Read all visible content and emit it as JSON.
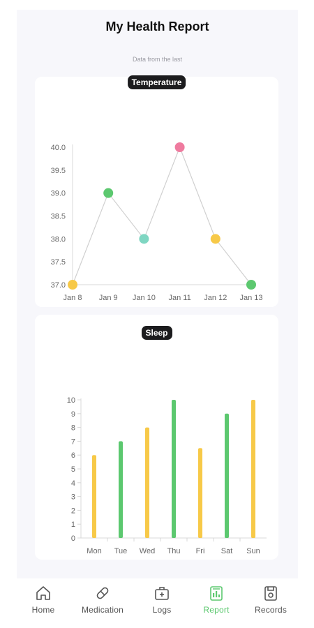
{
  "header": {
    "title": "My Health Report",
    "subtitle": "Data from the last"
  },
  "temperature": {
    "label": "Temperature",
    "chart_data": {
      "type": "line",
      "x": [
        "Jan 8",
        "Jan 9",
        "Jan 10",
        "Jan 11",
        "Jan 12",
        "Jan 13"
      ],
      "values": [
        37.0,
        39.0,
        38.0,
        40.0,
        38.0,
        37.0
      ],
      "point_colors": [
        "#f7c948",
        "#5cc86f",
        "#7fd6c2",
        "#ef7b9f",
        "#f7c948",
        "#5cc86f"
      ],
      "yticks": [
        "40.0",
        "39.5",
        "39.0",
        "38.5",
        "38.0",
        "37.5",
        "37.0"
      ],
      "ylim": [
        37.0,
        40.0
      ],
      "line_color": "#d0d0d0",
      "grid": false
    }
  },
  "sleep": {
    "label": "Sleep",
    "chart_data": {
      "type": "bar",
      "categories": [
        "Mon",
        "Tue",
        "Wed",
        "Thu",
        "Fri",
        "Sat",
        "Sun"
      ],
      "values": [
        6,
        7,
        8,
        10,
        6.5,
        9,
        10
      ],
      "bar_colors": [
        "#f7c948",
        "#5cc86f",
        "#f7c948",
        "#5cc86f",
        "#f7c948",
        "#5cc86f",
        "#f7c948"
      ],
      "yticks": [
        "10",
        "9",
        "8",
        "7",
        "6",
        "5",
        "4",
        "3",
        "2",
        "1",
        "0"
      ],
      "ylim": [
        0,
        10
      ],
      "grid": false
    }
  },
  "tabbar": {
    "items": [
      {
        "label": "Home",
        "icon": "home-icon"
      },
      {
        "label": "Medication",
        "icon": "pill-icon"
      },
      {
        "label": "Logs",
        "icon": "medical-kit-icon"
      },
      {
        "label": "Report",
        "icon": "report-icon",
        "active": true
      },
      {
        "label": "Records",
        "icon": "records-icon"
      }
    ],
    "active_color": "#5cc86f",
    "inactive_color": "#555555"
  }
}
